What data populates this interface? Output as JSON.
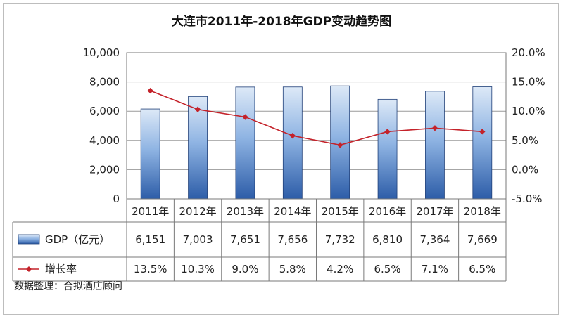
{
  "source_note": "数据整理：合拟酒店顾问",
  "colors": {
    "bar_top": "#dde9f7",
    "bar_mid": "#8fb4e3",
    "bar_bottom": "#2d5da8",
    "bar_stroke": "#1f3f78",
    "line": "#c4222a"
  },
  "chart_data": {
    "type": "bar",
    "title": "大连市2011年-2018年GDP变动趋势图",
    "categories": [
      "2011年",
      "2012年",
      "2013年",
      "2014年",
      "2015年",
      "2016年",
      "2017年",
      "2018年"
    ],
    "series": [
      {
        "name": "GDP（亿元）",
        "type": "bar",
        "axis": "left",
        "values": [
          6151,
          7003,
          7651,
          7656,
          7732,
          6810,
          7364,
          7669
        ],
        "value_labels": [
          "6,151",
          "7,003",
          "7,651",
          "7,656",
          "7,732",
          "6,810",
          "7,364",
          "7,669"
        ]
      },
      {
        "name": "增长率",
        "type": "line",
        "axis": "right",
        "values": [
          13.5,
          10.3,
          9.0,
          5.8,
          4.2,
          6.5,
          7.1,
          6.5
        ],
        "value_labels": [
          "13.5%",
          "10.3%",
          "9.0%",
          "5.8%",
          "4.2%",
          "6.5%",
          "7.1%",
          "6.5%"
        ]
      }
    ],
    "y_left": {
      "lim": [
        0,
        10000
      ],
      "ticks": [
        0,
        2000,
        4000,
        6000,
        8000,
        10000
      ],
      "tick_labels": [
        "0",
        "2,000",
        "4,000",
        "6,000",
        "8,000",
        "10,000"
      ]
    },
    "y_right": {
      "lim": [
        -5,
        20
      ],
      "ticks": [
        -5,
        0,
        5,
        10,
        15,
        20
      ],
      "tick_labels": [
        "-5.0%",
        "0.0%",
        "5.0%",
        "10.0%",
        "15.0%",
        "20.0%"
      ]
    },
    "grid": true,
    "legend": "data-table"
  }
}
